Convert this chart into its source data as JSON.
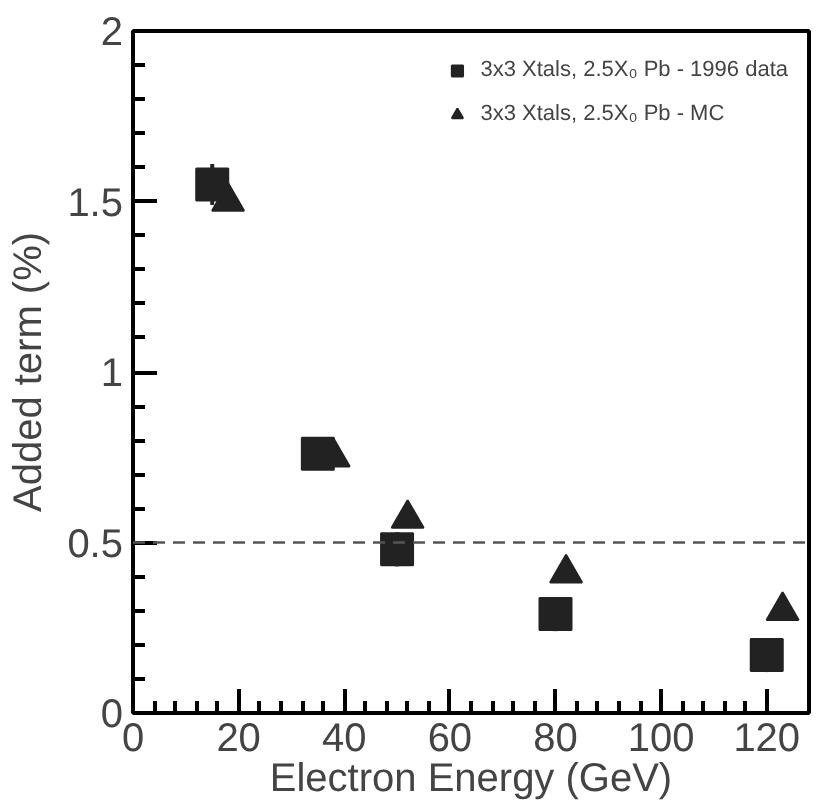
{
  "chart_data": {
    "type": "scatter",
    "xlabel": "Electron Energy (GeV)",
    "ylabel": "Added term (%)",
    "xlim": [
      0,
      128
    ],
    "ylim": [
      0,
      2
    ],
    "xticks": [
      0,
      20,
      40,
      60,
      80,
      100,
      120
    ],
    "yticks": [
      0,
      0.5,
      1,
      1.5,
      2
    ],
    "grid": false,
    "legend": "top right",
    "series": [
      {
        "name": "3x3 Xtals, 2.5X₀ Pb - 1996 data",
        "color": "#222222",
        "marker": "square",
        "x": [
          15,
          35,
          50,
          80,
          120
        ],
        "values": [
          1.55,
          0.76,
          0.48,
          0.29,
          0.17
        ],
        "errors": [
          0.06,
          0.04,
          0.05,
          0.05,
          0.05
        ]
      },
      {
        "name": "3x3 Xtals, 2.5X₀ Pb - MC",
        "color": "#222222",
        "marker": "triangle",
        "x": [
          18,
          38,
          52,
          82,
          123
        ],
        "values": [
          1.5,
          0.75,
          0.57,
          0.41,
          0.3
        ]
      }
    ],
    "ref_lines": [
      {
        "axis": "y",
        "value": 0.5,
        "label": null,
        "color": "#555555",
        "line_style": "dashed"
      }
    ]
  }
}
